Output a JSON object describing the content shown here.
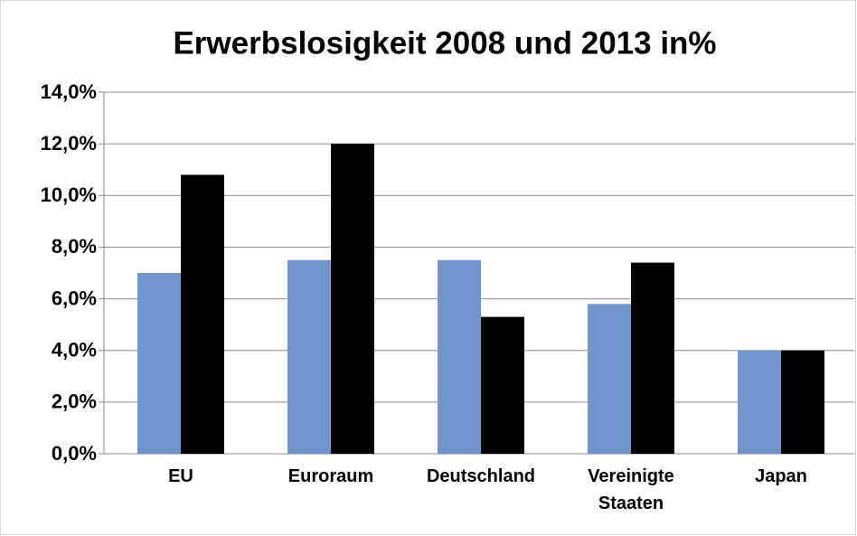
{
  "chart_data": {
    "type": "bar",
    "title": "Erwerbslosigkeit 2008 und 2013 in%",
    "categories": [
      "EU",
      "Euroraum",
      "Deutschland",
      "Vereinigte Staaten",
      "Japan"
    ],
    "series": [
      {
        "color": "#7095cd",
        "values": [
          7.0,
          7.5,
          7.5,
          5.8,
          4.0
        ]
      },
      {
        "color": "#000000",
        "values": [
          10.8,
          12.0,
          5.3,
          7.4,
          4.0
        ]
      }
    ],
    "ylim": [
      0,
      14
    ],
    "yticks": [
      {
        "value": 0,
        "label": "0,0%"
      },
      {
        "value": 2,
        "label": "2,0%"
      },
      {
        "value": 4,
        "label": "4,0%"
      },
      {
        "value": 6,
        "label": "6,0%"
      },
      {
        "value": 8,
        "label": "8,0%"
      },
      {
        "value": 10,
        "label": "10,0%"
      },
      {
        "value": 12,
        "label": "12,0%"
      },
      {
        "value": 14,
        "label": "14,0%"
      }
    ],
    "grid": true
  }
}
